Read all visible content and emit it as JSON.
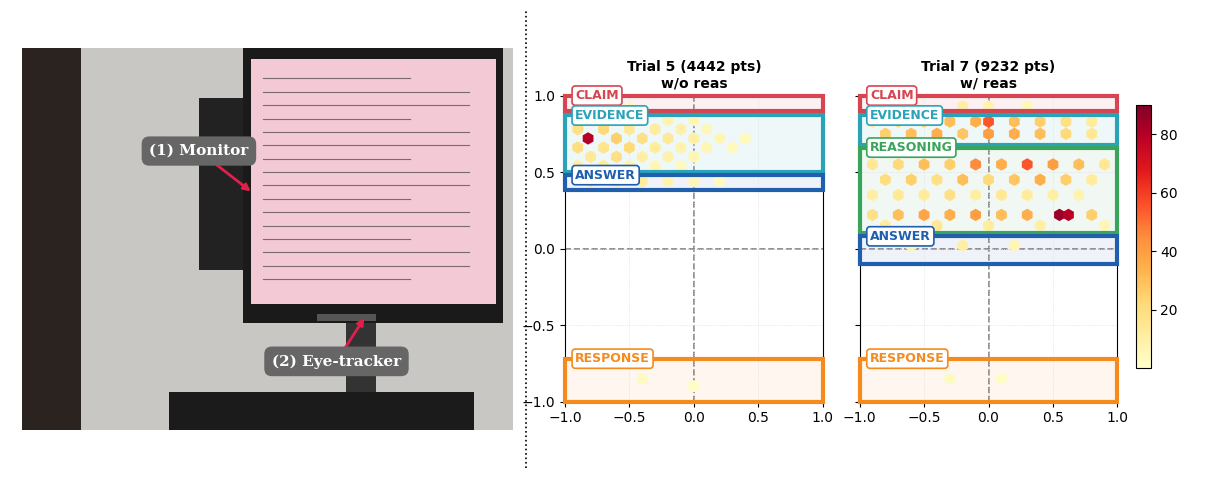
{
  "photo": {
    "labels": [
      "(1) Monitor",
      "(2) Eye-tracker"
    ]
  },
  "chart_data": [
    {
      "type": "hexbin",
      "title": "Trial 5 (4442 pts)\nw/o reas",
      "xlim": [
        -1,
        1
      ],
      "ylim": [
        -1,
        1
      ],
      "xticks": [
        {
          "value": -1,
          "label": "−1.0"
        },
        {
          "value": -0.5,
          "label": "−0.5"
        },
        {
          "value": 0,
          "label": "0.0"
        },
        {
          "value": 0.5,
          "label": "0.5"
        },
        {
          "value": 1,
          "label": "1.0"
        }
      ],
      "yticks": [
        {
          "value": -1,
          "label": "−1.0"
        },
        {
          "value": -0.5,
          "label": "−0.5"
        },
        {
          "value": 0,
          "label": "0.0"
        },
        {
          "value": 0.5,
          "label": "0.5"
        },
        {
          "value": 1,
          "label": "1.0"
        }
      ],
      "grid": true,
      "crosshair": [
        0,
        0
      ],
      "regions": [
        {
          "name": "CLAIM",
          "color": "#d64550",
          "y": [
            0.9,
            1.0
          ]
        },
        {
          "name": "EVIDENCE",
          "color": "#2aa3b8",
          "y": [
            0.5,
            0.87
          ]
        },
        {
          "name": "ANSWER",
          "color": "#1f5fae",
          "y": [
            0.38,
            0.48
          ]
        },
        {
          "name": "RESPONSE",
          "color": "#f58a1f",
          "y": [
            -1.0,
            -0.72
          ]
        }
      ],
      "cells": [
        [
          -0.7,
          0.92,
          6
        ],
        [
          -0.5,
          0.92,
          4
        ],
        [
          -0.8,
          0.84,
          12
        ],
        [
          -0.6,
          0.84,
          15
        ],
        [
          -0.4,
          0.84,
          10
        ],
        [
          -0.2,
          0.84,
          8
        ],
        [
          0.0,
          0.84,
          6
        ],
        [
          -0.9,
          0.78,
          18
        ],
        [
          -0.7,
          0.78,
          22
        ],
        [
          -0.5,
          0.78,
          14
        ],
        [
          -0.3,
          0.78,
          12
        ],
        [
          -0.1,
          0.78,
          9
        ],
        [
          0.1,
          0.78,
          5
        ],
        [
          -0.82,
          0.72,
          80
        ],
        [
          -0.6,
          0.72,
          25
        ],
        [
          -0.4,
          0.72,
          18
        ],
        [
          -0.2,
          0.72,
          14
        ],
        [
          0.0,
          0.72,
          10
        ],
        [
          0.2,
          0.72,
          6
        ],
        [
          0.4,
          0.72,
          4
        ],
        [
          -0.9,
          0.66,
          20
        ],
        [
          -0.7,
          0.66,
          16
        ],
        [
          -0.5,
          0.66,
          22
        ],
        [
          -0.3,
          0.66,
          12
        ],
        [
          -0.1,
          0.66,
          8
        ],
        [
          0.1,
          0.66,
          6
        ],
        [
          0.3,
          0.66,
          4
        ],
        [
          -0.8,
          0.6,
          14
        ],
        [
          -0.6,
          0.6,
          18
        ],
        [
          -0.4,
          0.6,
          10
        ],
        [
          -0.2,
          0.6,
          9
        ],
        [
          0.0,
          0.6,
          6
        ],
        [
          -0.9,
          0.54,
          10
        ],
        [
          -0.7,
          0.54,
          12
        ],
        [
          -0.5,
          0.54,
          8
        ],
        [
          -0.3,
          0.54,
          6
        ],
        [
          -0.1,
          0.54,
          4
        ],
        [
          -0.8,
          0.44,
          14
        ],
        [
          -0.6,
          0.44,
          10
        ],
        [
          -0.4,
          0.44,
          12
        ],
        [
          -0.2,
          0.44,
          8
        ],
        [
          0.0,
          0.44,
          5
        ],
        [
          0.2,
          0.44,
          3
        ],
        [
          -0.4,
          -0.85,
          3
        ],
        [
          0.0,
          -0.9,
          2
        ],
        [
          -0.6,
          -0.75,
          2
        ]
      ],
      "colorbar": {
        "range": [
          0,
          90
        ],
        "ticks": [
          20,
          40,
          60,
          80
        ]
      }
    },
    {
      "type": "hexbin",
      "title": "Trial 7 (9232 pts)\nw/ reas",
      "xlim": [
        -1,
        1
      ],
      "ylim": [
        -1,
        1
      ],
      "xticks": [
        {
          "value": -1,
          "label": "−1.0"
        },
        {
          "value": -0.5,
          "label": "−0.5"
        },
        {
          "value": 0,
          "label": "0.0"
        },
        {
          "value": 0.5,
          "label": "0.5"
        },
        {
          "value": 1,
          "label": "1.0"
        }
      ],
      "yticks": [
        -1,
        -0.5,
        0,
        0.5,
        1
      ],
      "tick_labels": "x",
      "grid": true,
      "crosshair": [
        0,
        0
      ],
      "regions": [
        {
          "name": "CLAIM",
          "color": "#d64550",
          "y": [
            0.9,
            1.0
          ]
        },
        {
          "name": "EVIDENCE",
          "color": "#2aa3b8",
          "y": [
            0.68,
            0.87
          ]
        },
        {
          "name": "REASONING",
          "color": "#3aa55a",
          "y": [
            0.1,
            0.66
          ]
        },
        {
          "name": "ANSWER",
          "color": "#1f5fae",
          "y": [
            -0.1,
            0.08
          ]
        },
        {
          "name": "RESPONSE",
          "color": "#f58a1f",
          "y": [
            -1.0,
            -0.72
          ]
        }
      ],
      "cells": [
        [
          -0.6,
          0.93,
          6
        ],
        [
          -0.2,
          0.93,
          10
        ],
        [
          0.0,
          0.93,
          8
        ],
        [
          0.3,
          0.93,
          5
        ],
        [
          -0.9,
          0.83,
          15
        ],
        [
          -0.7,
          0.83,
          20
        ],
        [
          -0.5,
          0.83,
          25
        ],
        [
          -0.3,
          0.83,
          30
        ],
        [
          -0.1,
          0.83,
          35
        ],
        [
          0.0,
          0.83,
          55
        ],
        [
          0.2,
          0.83,
          30
        ],
        [
          0.4,
          0.83,
          25
        ],
        [
          0.6,
          0.83,
          18
        ],
        [
          0.8,
          0.83,
          12
        ],
        [
          -0.8,
          0.75,
          25
        ],
        [
          -0.6,
          0.75,
          30
        ],
        [
          -0.4,
          0.75,
          35
        ],
        [
          -0.2,
          0.75,
          28
        ],
        [
          0.0,
          0.75,
          40
        ],
        [
          0.2,
          0.75,
          35
        ],
        [
          0.4,
          0.75,
          30
        ],
        [
          0.6,
          0.75,
          22
        ],
        [
          0.8,
          0.75,
          15
        ],
        [
          -0.9,
          0.55,
          15
        ],
        [
          -0.7,
          0.55,
          22
        ],
        [
          -0.5,
          0.55,
          30
        ],
        [
          -0.3,
          0.55,
          25
        ],
        [
          -0.1,
          0.55,
          45
        ],
        [
          0.1,
          0.55,
          35
        ],
        [
          0.3,
          0.55,
          55
        ],
        [
          0.5,
          0.55,
          40
        ],
        [
          0.7,
          0.55,
          30
        ],
        [
          0.9,
          0.55,
          15
        ],
        [
          -0.8,
          0.45,
          20
        ],
        [
          -0.6,
          0.45,
          25
        ],
        [
          -0.4,
          0.45,
          18
        ],
        [
          -0.2,
          0.45,
          30
        ],
        [
          0.0,
          0.45,
          22
        ],
        [
          0.2,
          0.45,
          28
        ],
        [
          0.4,
          0.45,
          35
        ],
        [
          0.6,
          0.45,
          25
        ],
        [
          0.8,
          0.45,
          12
        ],
        [
          -0.9,
          0.35,
          10
        ],
        [
          -0.7,
          0.35,
          14
        ],
        [
          -0.5,
          0.35,
          12
        ],
        [
          -0.3,
          0.35,
          18
        ],
        [
          -0.1,
          0.35,
          10
        ],
        [
          0.1,
          0.35,
          14
        ],
        [
          0.3,
          0.35,
          12
        ],
        [
          0.5,
          0.35,
          10
        ],
        [
          0.7,
          0.35,
          8
        ],
        [
          -0.9,
          0.22,
          18
        ],
        [
          -0.7,
          0.22,
          30
        ],
        [
          -0.5,
          0.22,
          38
        ],
        [
          -0.3,
          0.22,
          35
        ],
        [
          -0.1,
          0.22,
          40
        ],
        [
          0.1,
          0.22,
          30
        ],
        [
          0.3,
          0.22,
          35
        ],
        [
          0.55,
          0.22,
          85
        ],
        [
          0.62,
          0.22,
          80
        ],
        [
          0.8,
          0.22,
          25
        ],
        [
          -0.8,
          0.15,
          12
        ],
        [
          -0.4,
          0.15,
          15
        ],
        [
          0.0,
          0.15,
          12
        ],
        [
          0.4,
          0.15,
          10
        ],
        [
          0.9,
          0.15,
          6
        ],
        [
          -0.6,
          0.02,
          8
        ],
        [
          -0.2,
          0.02,
          10
        ],
        [
          0.2,
          0.02,
          6
        ],
        [
          -0.3,
          -0.85,
          3
        ],
        [
          0.1,
          -0.85,
          2
        ]
      ],
      "colorbar": {
        "range": [
          0,
          90
        ],
        "ticks": [
          20,
          40,
          60,
          80
        ]
      }
    }
  ]
}
